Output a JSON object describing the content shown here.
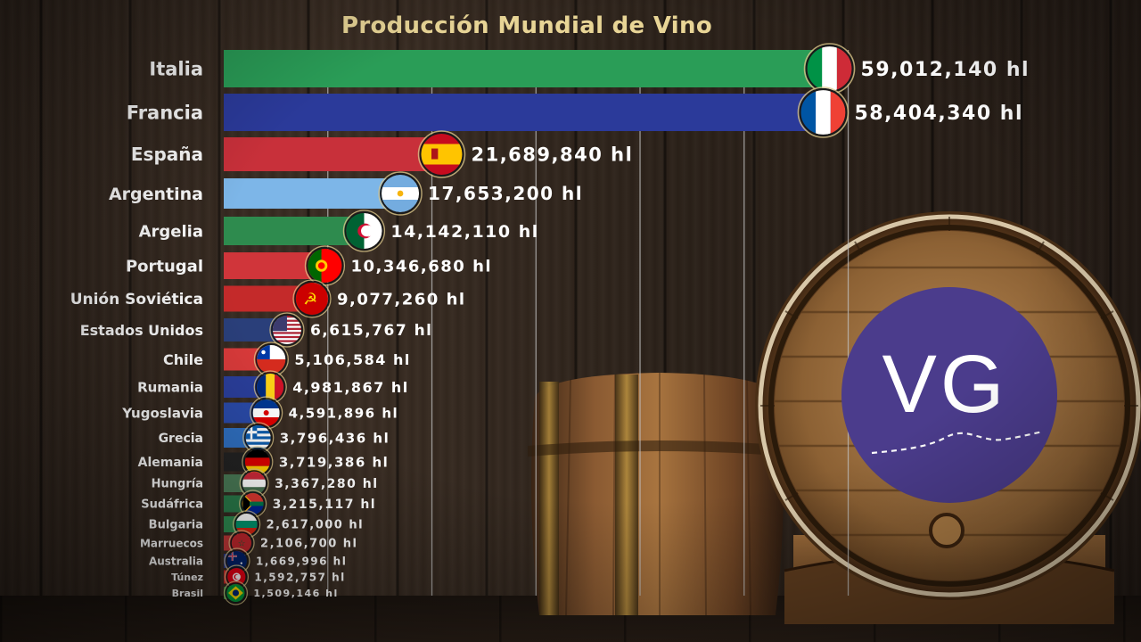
{
  "chart_data": {
    "type": "bar",
    "orientation": "horizontal",
    "title": "Producción Mundial de Vino",
    "unit": "hl",
    "xlim": [
      0,
      61000000
    ],
    "grid": true,
    "gridlines": [
      10000000,
      20000000,
      30000000,
      40000000,
      50000000,
      60000000
    ],
    "categories": [
      "Italia",
      "Francia",
      "España",
      "Argentina",
      "Argelia",
      "Portugal",
      "Unión Soviética",
      "Estados Unidos",
      "Chile",
      "Rumania",
      "Yugoslavia",
      "Grecia",
      "Alemania",
      "Hungría",
      "Sudáfrica",
      "Bulgaria",
      "Marruecos",
      "Australia",
      "Túnez",
      "Brasil"
    ],
    "values": [
      59012140,
      58404340,
      21689840,
      17653200,
      14142110,
      10346680,
      9077260,
      6615767,
      5106584,
      4981867,
      4591896,
      3796436,
      3719386,
      3367280,
      3215117,
      2617000,
      2106700,
      1669996,
      1592757,
      1509146
    ],
    "value_labels": [
      "59,012,140 hl",
      "58,404,340 hl",
      "21,689,840 hl",
      "17,653,200 hl",
      "14,142,110 hl",
      "10,346,680 hl",
      "9,077,260 hl",
      "6,615,767 hl",
      "5,106,584 hl",
      "4,981,867 hl",
      "4,591,896 hl",
      "3,796,436 hl",
      "3,719,386 hl",
      "3,367,280 hl",
      "3,215,117 hl",
      "2,617,000 hl",
      "2,106,700 hl",
      "1,669,996 hl",
      "1,592,757 hl",
      "1,509,146 hl"
    ],
    "bar_colors": [
      "#2a9d57",
      "#2b3a9a",
      "#c8303a",
      "#7db6e8",
      "#2e8b4e",
      "#d0353a",
      "#c42a2a",
      "#2a3f7a",
      "#d83a3a",
      "#2a3e9a",
      "#2a4aa8",
      "#2f6fc0",
      "#222222",
      "#4a7a56",
      "#2a7a4a",
      "#2e8a50",
      "#c13838",
      "#2a3a8a",
      "#d02a2a",
      "#2a8a3a"
    ],
    "flags": [
      "italy-flag",
      "france-flag",
      "spain-flag",
      "argentina-flag",
      "algeria-flag",
      "portugal-flag",
      "soviet-union-flag",
      "usa-flag",
      "chile-flag",
      "romania-flag",
      "yugoslavia-flag",
      "greece-flag",
      "germany-flag",
      "hungary-flag",
      "south-africa-flag",
      "bulgaria-flag",
      "morocco-flag",
      "australia-flag",
      "tunisia-flag",
      "brazil-flag"
    ]
  },
  "colors": {
    "title": "#e8d596",
    "gridline": "#bfbfbf",
    "logo_bg": "#4b3c8c"
  },
  "logo": {
    "text": "VG"
  }
}
